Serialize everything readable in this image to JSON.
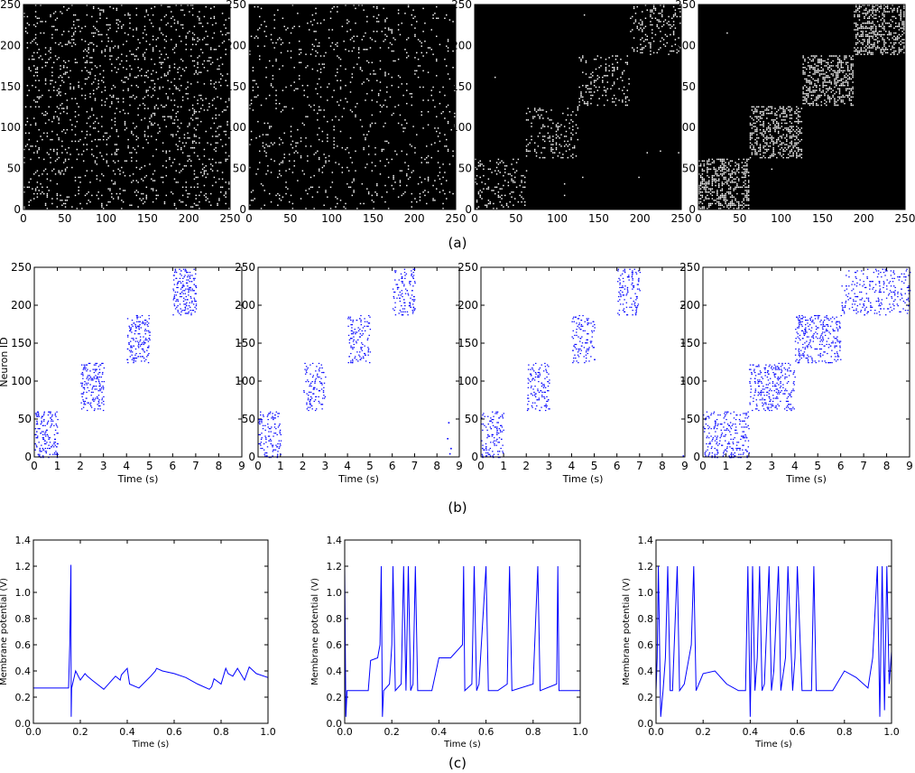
{
  "figure": {
    "captions": [
      "(a)",
      "(b)",
      "(c)"
    ]
  },
  "colors": {
    "matrix_background": "#000000",
    "matrix_dot": "#ffffff",
    "spike": "#0000ff",
    "trace": "#0000ff",
    "axis": "#000000"
  },
  "chart_data": [
    {
      "type": "heatmap",
      "panel": "a1",
      "description_of_content": "random sparse binary connectivity, uniform",
      "xlim": [
        0,
        250
      ],
      "ylim": [
        0,
        250
      ],
      "xticks": [
        0,
        50,
        100,
        150,
        200,
        250
      ],
      "yticks": [
        0,
        50,
        100,
        150,
        200,
        250
      ],
      "pattern": {
        "background_density": 0.09,
        "blocks": []
      }
    },
    {
      "type": "heatmap",
      "panel": "a2",
      "xlim": [
        0,
        250
      ],
      "ylim": [
        0,
        250
      ],
      "xticks": [
        0,
        50,
        100,
        150,
        200,
        250
      ],
      "yticks": [
        0,
        50,
        100,
        150,
        200,
        250
      ],
      "pattern": {
        "background_density": 0.05,
        "blocks": []
      }
    },
    {
      "type": "heatmap",
      "panel": "a3",
      "xlim": [
        0,
        250
      ],
      "ylim": [
        0,
        250
      ],
      "xticks": [
        0,
        50,
        100,
        150,
        200,
        250
      ],
      "yticks": [
        0,
        50,
        100,
        150,
        200,
        250
      ],
      "pattern": {
        "background_density": 0.001,
        "blocks": [
          {
            "x": [
              0,
              62
            ],
            "y": [
              0,
              62
            ],
            "density": 0.12
          },
          {
            "x": [
              62,
              125
            ],
            "y": [
              62,
              125
            ],
            "density": 0.14
          },
          {
            "x": [
              125,
              188
            ],
            "y": [
              125,
              188
            ],
            "density": 0.14
          },
          {
            "x": [
              188,
              250
            ],
            "y": [
              188,
              250
            ],
            "density": 0.14
          }
        ]
      }
    },
    {
      "type": "heatmap",
      "panel": "a4",
      "xlim": [
        0,
        250
      ],
      "ylim": [
        0,
        250
      ],
      "xticks": [
        0,
        50,
        100,
        150,
        200,
        250
      ],
      "yticks": [
        0,
        50,
        100,
        150,
        200,
        250
      ],
      "pattern": {
        "background_density": 0.0005,
        "blocks": [
          {
            "x": [
              0,
              62
            ],
            "y": [
              0,
              62
            ],
            "density": 0.4
          },
          {
            "x": [
              62,
              125
            ],
            "y": [
              62,
              125
            ],
            "density": 0.4
          },
          {
            "x": [
              125,
              188
            ],
            "y": [
              125,
              188
            ],
            "density": 0.4
          },
          {
            "x": [
              188,
              250
            ],
            "y": [
              188,
              250
            ],
            "density": 0.4
          }
        ]
      }
    },
    {
      "type": "scatter",
      "panel": "b1",
      "xlabel": "Time (s)",
      "ylabel": "Neuron ID",
      "xlim": [
        0,
        9
      ],
      "ylim": [
        0,
        250
      ],
      "xticks": [
        0,
        1,
        2,
        3,
        4,
        5,
        6,
        7,
        8,
        9
      ],
      "yticks": [
        0,
        50,
        100,
        150,
        200,
        250
      ],
      "clusters": [
        {
          "t": [
            0,
            1
          ],
          "ids": [
            0,
            62
          ],
          "density": 0.55
        },
        {
          "t": [
            2,
            3
          ],
          "ids": [
            62,
            125
          ],
          "density": 0.55
        },
        {
          "t": [
            4,
            5
          ],
          "ids": [
            125,
            188
          ],
          "density": 0.55
        },
        {
          "t": [
            6,
            7
          ],
          "ids": [
            188,
            250
          ],
          "density": 0.55
        }
      ]
    },
    {
      "type": "scatter",
      "panel": "b2",
      "xlabel": "Time (s)",
      "ylabel": "",
      "xlim": [
        0,
        9
      ],
      "ylim": [
        0,
        250
      ],
      "xticks": [
        0,
        1,
        2,
        3,
        4,
        5,
        6,
        7,
        8,
        9
      ],
      "yticks": [
        0,
        50,
        100,
        150,
        200,
        250
      ],
      "clusters": [
        {
          "t": [
            0,
            1
          ],
          "ids": [
            0,
            62
          ],
          "density": 0.4
        },
        {
          "t": [
            2,
            3
          ],
          "ids": [
            62,
            125
          ],
          "density": 0.4
        },
        {
          "t": [
            4,
            5
          ],
          "ids": [
            125,
            188
          ],
          "density": 0.4
        },
        {
          "t": [
            6,
            7
          ],
          "ids": [
            188,
            250
          ],
          "density": 0.4
        }
      ],
      "extra_points": [
        [
          8.5,
          46
        ],
        [
          8.6,
          12
        ],
        [
          8.45,
          25
        ],
        [
          8.55,
          5
        ]
      ]
    },
    {
      "type": "scatter",
      "panel": "b3",
      "xlabel": "Time (s)",
      "ylabel": "",
      "xlim": [
        0,
        9
      ],
      "ylim": [
        0,
        250
      ],
      "xticks": [
        0,
        1,
        2,
        3,
        4,
        5,
        6,
        7,
        8,
        9
      ],
      "yticks": [
        0,
        50,
        100,
        150,
        200,
        250
      ],
      "clusters": [
        {
          "t": [
            0,
            1
          ],
          "ids": [
            0,
            62
          ],
          "density": 0.4
        },
        {
          "t": [
            2,
            3
          ],
          "ids": [
            62,
            125
          ],
          "density": 0.4
        },
        {
          "t": [
            4,
            5
          ],
          "ids": [
            125,
            188
          ],
          "density": 0.4
        },
        {
          "t": [
            6,
            7
          ],
          "ids": [
            188,
            250
          ],
          "density": 0.4
        }
      ],
      "extra_points": [
        [
          8.9,
          2
        ]
      ]
    },
    {
      "type": "scatter",
      "panel": "b4",
      "xlabel": "Time (s)",
      "ylabel": "",
      "xlim": [
        0,
        9
      ],
      "ylim": [
        0,
        250
      ],
      "xticks": [
        0,
        1,
        2,
        3,
        4,
        5,
        6,
        7,
        8,
        9
      ],
      "yticks": [
        0,
        50,
        100,
        150,
        200,
        250
      ],
      "clusters": [
        {
          "t": [
            0,
            2
          ],
          "ids": [
            0,
            62
          ],
          "density": 0.9
        },
        {
          "t": [
            2,
            4
          ],
          "ids": [
            62,
            125
          ],
          "density": 0.9
        },
        {
          "t": [
            4,
            6
          ],
          "ids": [
            125,
            188
          ],
          "density": 0.9
        },
        {
          "t": [
            6,
            9
          ],
          "ids": [
            188,
            250
          ],
          "density": 0.9
        }
      ]
    },
    {
      "type": "line",
      "panel": "c1",
      "xlabel": "Time (s)",
      "ylabel": "Membrane potential (V)",
      "xlim": [
        0,
        1.0
      ],
      "ylim": [
        0,
        1.4
      ],
      "xticks": [
        0.0,
        0.2,
        0.4,
        0.6,
        0.8,
        1.0
      ],
      "yticks": [
        0.0,
        0.2,
        0.4,
        0.6,
        0.8,
        1.0,
        1.2,
        1.4
      ],
      "x": [
        0.0,
        0.15,
        0.155,
        0.16,
        0.161,
        0.163,
        0.18,
        0.2,
        0.22,
        0.23,
        0.25,
        0.3,
        0.35,
        0.37,
        0.375,
        0.4,
        0.41,
        0.45,
        0.5,
        0.52,
        0.525,
        0.55,
        0.6,
        0.65,
        0.7,
        0.75,
        0.76,
        0.77,
        0.8,
        0.82,
        0.83,
        0.85,
        0.87,
        0.9,
        0.92,
        0.95,
        1.0
      ],
      "y": [
        0.27,
        0.27,
        0.6,
        1.21,
        0.05,
        0.27,
        0.4,
        0.33,
        0.38,
        0.36,
        0.33,
        0.26,
        0.36,
        0.33,
        0.37,
        0.42,
        0.3,
        0.27,
        0.36,
        0.4,
        0.42,
        0.4,
        0.38,
        0.35,
        0.3,
        0.26,
        0.28,
        0.34,
        0.3,
        0.42,
        0.38,
        0.36,
        0.42,
        0.33,
        0.43,
        0.38,
        0.35
      ]
    },
    {
      "type": "line",
      "panel": "c2",
      "xlabel": "Time (s)",
      "ylabel": "Membrane potential (V)",
      "xlim": [
        0,
        1.0
      ],
      "ylim": [
        0,
        1.4
      ],
      "xticks": [
        0.0,
        0.2,
        0.4,
        0.6,
        0.8,
        1.0
      ],
      "yticks": [
        0.0,
        0.2,
        0.4,
        0.6,
        0.8,
        1.0,
        1.2,
        1.4
      ],
      "x": [
        0.0,
        0.005,
        0.01,
        0.02,
        0.1,
        0.11,
        0.14,
        0.15,
        0.155,
        0.16,
        0.165,
        0.19,
        0.2,
        0.205,
        0.215,
        0.24,
        0.25,
        0.26,
        0.27,
        0.28,
        0.29,
        0.3,
        0.31,
        0.32,
        0.37,
        0.4,
        0.42,
        0.45,
        0.5,
        0.505,
        0.51,
        0.54,
        0.55,
        0.56,
        0.57,
        0.6,
        0.61,
        0.65,
        0.69,
        0.7,
        0.71,
        0.8,
        0.82,
        0.83,
        0.9,
        0.905,
        0.91,
        1.0
      ],
      "y": [
        1.2,
        0.05,
        0.25,
        0.25,
        0.25,
        0.48,
        0.5,
        0.6,
        1.2,
        0.05,
        0.25,
        0.3,
        0.6,
        1.2,
        0.25,
        0.3,
        1.2,
        0.25,
        1.2,
        0.25,
        0.3,
        1.2,
        0.25,
        0.25,
        0.25,
        0.5,
        0.5,
        0.5,
        0.6,
        1.2,
        0.25,
        0.3,
        1.2,
        0.25,
        0.3,
        1.2,
        0.25,
        0.25,
        0.3,
        1.2,
        0.25,
        0.3,
        1.2,
        0.25,
        0.3,
        1.2,
        0.25,
        0.25
      ]
    },
    {
      "type": "line",
      "panel": "c3",
      "xlabel": "Time (s)",
      "ylabel": "Membrane potential (V)",
      "xlim": [
        0,
        1.0
      ],
      "ylim": [
        0,
        1.4
      ],
      "xticks": [
        0.0,
        0.2,
        0.4,
        0.6,
        0.8,
        1.0
      ],
      "yticks": [
        0.0,
        0.2,
        0.4,
        0.6,
        0.8,
        1.0,
        1.2,
        1.4
      ],
      "x": [
        0.0,
        0.005,
        0.01,
        0.02,
        0.03,
        0.04,
        0.05,
        0.06,
        0.07,
        0.09,
        0.1,
        0.12,
        0.15,
        0.16,
        0.17,
        0.2,
        0.25,
        0.3,
        0.35,
        0.38,
        0.39,
        0.4,
        0.41,
        0.42,
        0.43,
        0.44,
        0.45,
        0.46,
        0.48,
        0.49,
        0.5,
        0.52,
        0.53,
        0.55,
        0.56,
        0.58,
        0.59,
        0.6,
        0.62,
        0.64,
        0.66,
        0.67,
        0.68,
        0.75,
        0.8,
        0.85,
        0.9,
        0.92,
        0.94,
        0.95,
        0.96,
        0.97,
        0.98,
        0.99,
        1.0
      ],
      "y": [
        0.25,
        0.5,
        1.2,
        0.05,
        0.25,
        0.5,
        1.2,
        0.25,
        0.25,
        1.2,
        0.25,
        0.3,
        0.6,
        1.2,
        0.25,
        0.38,
        0.4,
        0.3,
        0.25,
        0.25,
        1.2,
        0.05,
        1.2,
        0.25,
        0.5,
        1.2,
        0.25,
        0.3,
        1.2,
        0.25,
        0.4,
        1.2,
        0.25,
        0.5,
        1.2,
        0.25,
        0.5,
        1.2,
        0.25,
        0.25,
        0.25,
        1.2,
        0.25,
        0.25,
        0.4,
        0.35,
        0.27,
        0.5,
        1.2,
        0.05,
        1.2,
        0.1,
        1.2,
        0.3,
        0.55
      ]
    }
  ]
}
